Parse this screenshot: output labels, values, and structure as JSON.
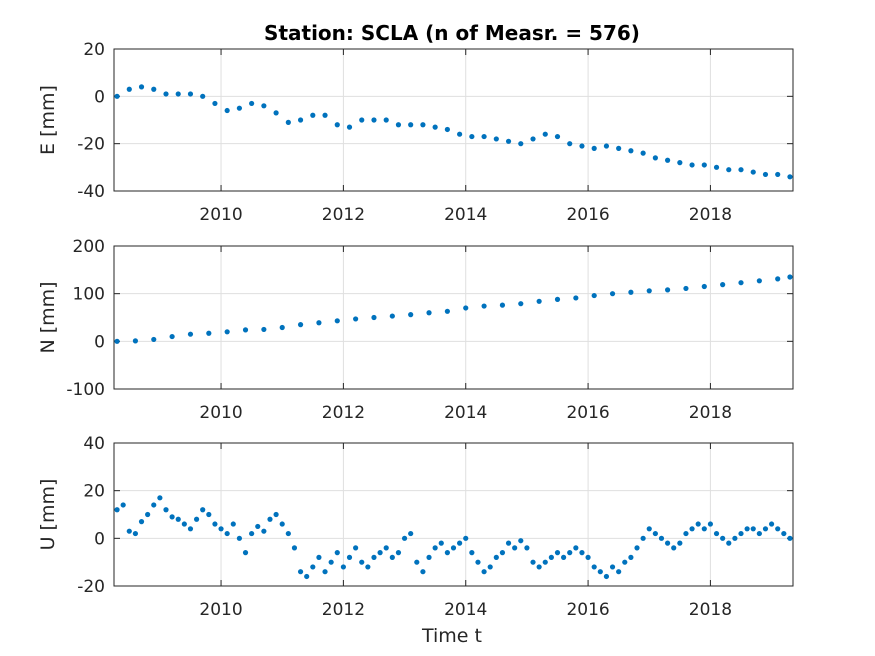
{
  "title": "Station: SCLA (n of Measr. = 576)",
  "xlabel": "Time t",
  "colors": {
    "marker": "#0072BD",
    "axis": "#262626",
    "grid": "#dfdfdf"
  },
  "chart_data": [
    {
      "type": "scatter",
      "ylabel": "E [mm]",
      "xlim": [
        2008.25,
        2019.35
      ],
      "ylim": [
        -40,
        20
      ],
      "xticks": [
        2010,
        2012,
        2014,
        2016,
        2018
      ],
      "yticks": [
        20,
        0,
        -20,
        -40
      ],
      "grid": true,
      "series": [
        {
          "points": [
            [
              2008.3,
              0
            ],
            [
              2008.5,
              3
            ],
            [
              2008.7,
              4
            ],
            [
              2008.9,
              3
            ],
            [
              2009.1,
              1
            ],
            [
              2009.3,
              1
            ],
            [
              2009.5,
              1
            ],
            [
              2009.7,
              0
            ],
            [
              2009.9,
              -3
            ],
            [
              2010.1,
              -6
            ],
            [
              2010.3,
              -5
            ],
            [
              2010.5,
              -3
            ],
            [
              2010.7,
              -4
            ],
            [
              2010.9,
              -7
            ],
            [
              2011.1,
              -11
            ],
            [
              2011.3,
              -10
            ],
            [
              2011.5,
              -8
            ],
            [
              2011.7,
              -8
            ],
            [
              2011.9,
              -12
            ],
            [
              2012.1,
              -13
            ],
            [
              2012.3,
              -10
            ],
            [
              2012.5,
              -10
            ],
            [
              2012.7,
              -10
            ],
            [
              2012.9,
              -12
            ],
            [
              2013.1,
              -12
            ],
            [
              2013.3,
              -12
            ],
            [
              2013.5,
              -13
            ],
            [
              2013.7,
              -14
            ],
            [
              2013.9,
              -16
            ],
            [
              2014.1,
              -17
            ],
            [
              2014.3,
              -17
            ],
            [
              2014.5,
              -18
            ],
            [
              2014.7,
              -19
            ],
            [
              2014.9,
              -20
            ],
            [
              2015.1,
              -18
            ],
            [
              2015.3,
              -16
            ],
            [
              2015.5,
              -17
            ],
            [
              2015.7,
              -20
            ],
            [
              2015.9,
              -21
            ],
            [
              2016.1,
              -22
            ],
            [
              2016.3,
              -21
            ],
            [
              2016.5,
              -22
            ],
            [
              2016.7,
              -23
            ],
            [
              2016.9,
              -24
            ],
            [
              2017.1,
              -26
            ],
            [
              2017.3,
              -27
            ],
            [
              2017.5,
              -28
            ],
            [
              2017.7,
              -29
            ],
            [
              2017.9,
              -29
            ],
            [
              2018.1,
              -30
            ],
            [
              2018.3,
              -31
            ],
            [
              2018.5,
              -31
            ],
            [
              2018.7,
              -32
            ],
            [
              2018.9,
              -33
            ],
            [
              2019.1,
              -33
            ],
            [
              2019.3,
              -34
            ]
          ]
        }
      ]
    },
    {
      "type": "scatter",
      "ylabel": "N [mm]",
      "xlim": [
        2008.25,
        2019.35
      ],
      "ylim": [
        -100,
        200
      ],
      "xticks": [
        2010,
        2012,
        2014,
        2016,
        2018
      ],
      "yticks": [
        200,
        100,
        0,
        -100
      ],
      "grid": true,
      "series": [
        {
          "points": [
            [
              2008.3,
              0
            ],
            [
              2008.6,
              1
            ],
            [
              2008.9,
              4
            ],
            [
              2009.2,
              10
            ],
            [
              2009.5,
              15
            ],
            [
              2009.8,
              17
            ],
            [
              2010.1,
              20
            ],
            [
              2010.4,
              24
            ],
            [
              2010.7,
              25
            ],
            [
              2011.0,
              29
            ],
            [
              2011.3,
              35
            ],
            [
              2011.6,
              39
            ],
            [
              2011.9,
              43
            ],
            [
              2012.2,
              47
            ],
            [
              2012.5,
              50
            ],
            [
              2012.8,
              53
            ],
            [
              2013.1,
              56
            ],
            [
              2013.4,
              60
            ],
            [
              2013.7,
              63
            ],
            [
              2014.0,
              70
            ],
            [
              2014.3,
              74
            ],
            [
              2014.6,
              76
            ],
            [
              2014.9,
              79
            ],
            [
              2015.2,
              84
            ],
            [
              2015.5,
              88
            ],
            [
              2015.8,
              91
            ],
            [
              2016.1,
              96
            ],
            [
              2016.4,
              100
            ],
            [
              2016.7,
              103
            ],
            [
              2017.0,
              106
            ],
            [
              2017.3,
              108
            ],
            [
              2017.6,
              111
            ],
            [
              2017.9,
              115
            ],
            [
              2018.2,
              119
            ],
            [
              2018.5,
              123
            ],
            [
              2018.8,
              127
            ],
            [
              2019.1,
              131
            ],
            [
              2019.3,
              135
            ]
          ]
        }
      ]
    },
    {
      "type": "scatter",
      "ylabel": "U [mm]",
      "xlim": [
        2008.25,
        2019.35
      ],
      "ylim": [
        -20,
        40
      ],
      "xticks": [
        2010,
        2012,
        2014,
        2016,
        2018
      ],
      "yticks": [
        40,
        20,
        0,
        -20
      ],
      "grid": true,
      "series": [
        {
          "points": [
            [
              2008.3,
              12
            ],
            [
              2008.4,
              14
            ],
            [
              2008.5,
              3
            ],
            [
              2008.6,
              2
            ],
            [
              2008.7,
              7
            ],
            [
              2008.8,
              10
            ],
            [
              2008.9,
              14
            ],
            [
              2009.0,
              17
            ],
            [
              2009.1,
              12
            ],
            [
              2009.2,
              9
            ],
            [
              2009.3,
              8
            ],
            [
              2009.4,
              6
            ],
            [
              2009.5,
              4
            ],
            [
              2009.6,
              8
            ],
            [
              2009.7,
              12
            ],
            [
              2009.8,
              10
            ],
            [
              2009.9,
              6
            ],
            [
              2010.0,
              4
            ],
            [
              2010.1,
              2
            ],
            [
              2010.2,
              6
            ],
            [
              2010.3,
              0
            ],
            [
              2010.4,
              -6
            ],
            [
              2010.5,
              2
            ],
            [
              2010.6,
              5
            ],
            [
              2010.7,
              3
            ],
            [
              2010.8,
              8
            ],
            [
              2010.9,
              10
            ],
            [
              2011.0,
              6
            ],
            [
              2011.1,
              2
            ],
            [
              2011.2,
              -4
            ],
            [
              2011.3,
              -14
            ],
            [
              2011.4,
              -16
            ],
            [
              2011.5,
              -12
            ],
            [
              2011.6,
              -8
            ],
            [
              2011.7,
              -14
            ],
            [
              2011.8,
              -10
            ],
            [
              2011.9,
              -6
            ],
            [
              2012.0,
              -12
            ],
            [
              2012.1,
              -8
            ],
            [
              2012.2,
              -4
            ],
            [
              2012.3,
              -10
            ],
            [
              2012.4,
              -12
            ],
            [
              2012.5,
              -8
            ],
            [
              2012.6,
              -6
            ],
            [
              2012.7,
              -4
            ],
            [
              2012.8,
              -8
            ],
            [
              2012.9,
              -6
            ],
            [
              2013.0,
              0
            ],
            [
              2013.1,
              2
            ],
            [
              2013.2,
              -10
            ],
            [
              2013.3,
              -14
            ],
            [
              2013.4,
              -8
            ],
            [
              2013.5,
              -4
            ],
            [
              2013.6,
              -2
            ],
            [
              2013.7,
              -6
            ],
            [
              2013.8,
              -4
            ],
            [
              2013.9,
              -2
            ],
            [
              2014.0,
              0
            ],
            [
              2014.1,
              -6
            ],
            [
              2014.2,
              -10
            ],
            [
              2014.3,
              -14
            ],
            [
              2014.4,
              -12
            ],
            [
              2014.5,
              -8
            ],
            [
              2014.6,
              -6
            ],
            [
              2014.7,
              -2
            ],
            [
              2014.8,
              -4
            ],
            [
              2014.9,
              -1
            ],
            [
              2015.0,
              -4
            ],
            [
              2015.1,
              -10
            ],
            [
              2015.2,
              -12
            ],
            [
              2015.3,
              -10
            ],
            [
              2015.4,
              -8
            ],
            [
              2015.5,
              -6
            ],
            [
              2015.6,
              -8
            ],
            [
              2015.7,
              -6
            ],
            [
              2015.8,
              -4
            ],
            [
              2015.9,
              -6
            ],
            [
              2016.0,
              -8
            ],
            [
              2016.1,
              -12
            ],
            [
              2016.2,
              -14
            ],
            [
              2016.3,
              -16
            ],
            [
              2016.4,
              -12
            ],
            [
              2016.5,
              -14
            ],
            [
              2016.6,
              -10
            ],
            [
              2016.7,
              -8
            ],
            [
              2016.8,
              -4
            ],
            [
              2016.9,
              0
            ],
            [
              2017.0,
              4
            ],
            [
              2017.1,
              2
            ],
            [
              2017.2,
              0
            ],
            [
              2017.3,
              -2
            ],
            [
              2017.4,
              -4
            ],
            [
              2017.5,
              -2
            ],
            [
              2017.6,
              2
            ],
            [
              2017.7,
              4
            ],
            [
              2017.8,
              6
            ],
            [
              2017.9,
              4
            ],
            [
              2018.0,
              6
            ],
            [
              2018.1,
              2
            ],
            [
              2018.2,
              0
            ],
            [
              2018.3,
              -2
            ],
            [
              2018.4,
              0
            ],
            [
              2018.5,
              2
            ],
            [
              2018.6,
              4
            ],
            [
              2018.7,
              4
            ],
            [
              2018.8,
              2
            ],
            [
              2018.9,
              4
            ],
            [
              2019.0,
              6
            ],
            [
              2019.1,
              4
            ],
            [
              2019.2,
              2
            ],
            [
              2019.3,
              0
            ]
          ]
        }
      ]
    }
  ]
}
